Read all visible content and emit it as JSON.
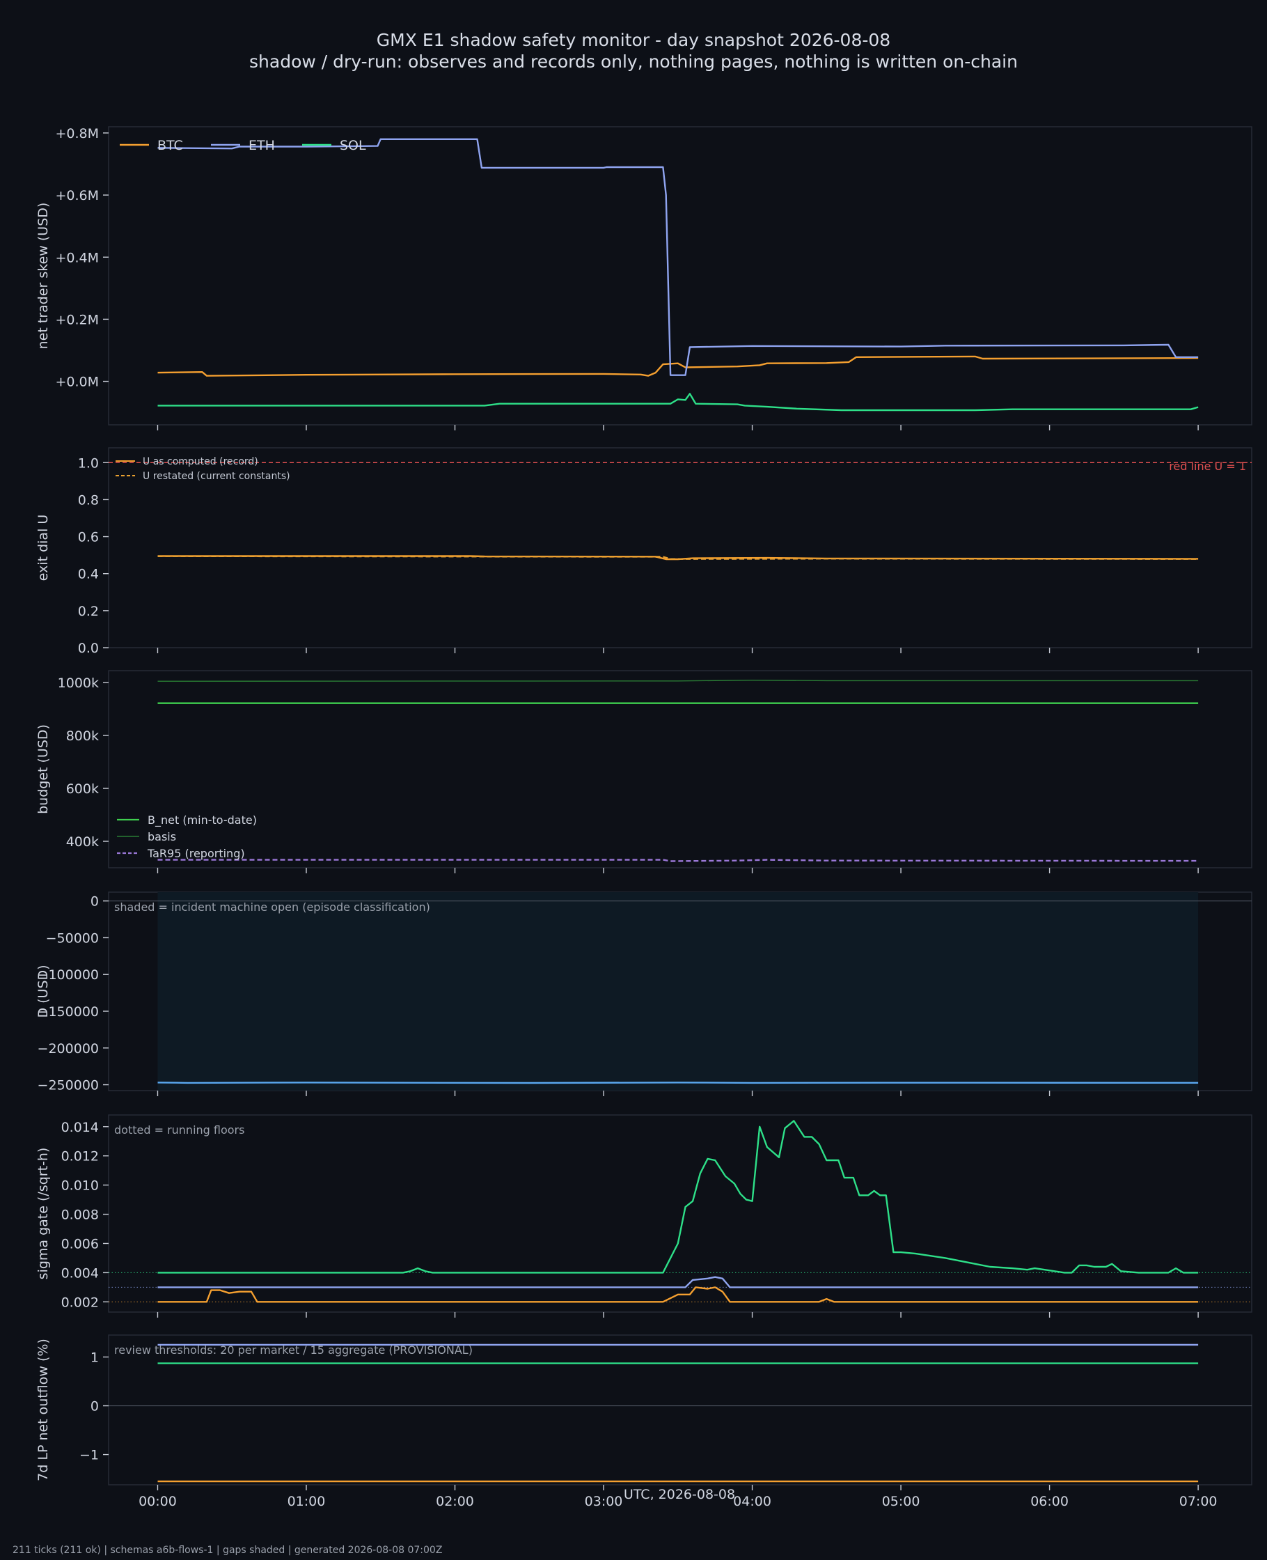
{
  "page": {
    "title": "GMX E1 shadow safety monitor - day snapshot 2026-08-08",
    "subtitle": "shadow / dry-run: observes and records only, nothing pages, nothing is written on-chain",
    "footer": "211 ticks (211 ok) | schemas a6b-flows-1 | gaps shaded | generated 2026-08-08 07:00Z"
  },
  "colors": {
    "background": "#0d1017",
    "panel": "#0d1017",
    "btc": "#f5a030",
    "eth": "#8fa4f0",
    "sol": "#2ee089",
    "red_line": "#e05050",
    "u_restated": "#e8a030",
    "b_net": "#3fcf4f",
    "basis": "#2a7d35",
    "tar95": "#9b78d8",
    "d_line": "#5aa8f0",
    "shade": "#0e1a24"
  },
  "chart_data": [
    {
      "type": "line",
      "ylabel": "net trader skew (USD)",
      "ylim": [
        -0.14,
        0.82
      ],
      "yticks": [
        0.0,
        0.2,
        0.4,
        0.6,
        0.8
      ],
      "ytick_labels": [
        "+0.0M",
        "+0.2M",
        "+0.4M",
        "+0.6M",
        "+0.8M"
      ],
      "units": "USD millions",
      "legend": [
        "BTC",
        "ETH",
        "SOL"
      ],
      "legend_position": "top-left",
      "series": [
        {
          "name": "BTC",
          "color_key": "btc",
          "points": [
            [
              0,
              0.028
            ],
            [
              0.3,
              0.03
            ],
            [
              0.33,
              0.018
            ],
            [
              1.0,
              0.021
            ],
            [
              2.0,
              0.023
            ],
            [
              3.0,
              0.024
            ],
            [
              3.25,
              0.022
            ],
            [
              3.3,
              0.018
            ],
            [
              3.35,
              0.028
            ],
            [
              3.4,
              0.055
            ],
            [
              3.5,
              0.058
            ],
            [
              3.55,
              0.045
            ],
            [
              3.9,
              0.048
            ],
            [
              4.05,
              0.052
            ],
            [
              4.1,
              0.058
            ],
            [
              4.5,
              0.059
            ],
            [
              4.65,
              0.062
            ],
            [
              4.7,
              0.078
            ],
            [
              5.5,
              0.08
            ],
            [
              5.55,
              0.073
            ],
            [
              6.3,
              0.074
            ],
            [
              7.0,
              0.075
            ]
          ]
        },
        {
          "name": "ETH",
          "color_key": "eth",
          "points": [
            [
              0,
              0.752
            ],
            [
              0.5,
              0.75
            ],
            [
              0.55,
              0.756
            ],
            [
              1.0,
              0.756
            ],
            [
              1.48,
              0.758
            ],
            [
              1.5,
              0.78
            ],
            [
              2.15,
              0.78
            ],
            [
              2.18,
              0.688
            ],
            [
              3.0,
              0.688
            ],
            [
              3.02,
              0.69
            ],
            [
              3.4,
              0.69
            ],
            [
              3.42,
              0.6
            ],
            [
              3.45,
              0.02
            ],
            [
              3.55,
              0.02
            ],
            [
              3.58,
              0.11
            ],
            [
              4.0,
              0.114
            ],
            [
              5.0,
              0.112
            ],
            [
              5.3,
              0.115
            ],
            [
              6.5,
              0.116
            ],
            [
              6.8,
              0.118
            ],
            [
              6.85,
              0.078
            ],
            [
              7.0,
              0.078
            ]
          ]
        },
        {
          "name": "SOL",
          "color_key": "sol",
          "points": [
            [
              0,
              -0.078
            ],
            [
              2.2,
              -0.078
            ],
            [
              2.3,
              -0.072
            ],
            [
              3.45,
              -0.072
            ],
            [
              3.5,
              -0.058
            ],
            [
              3.55,
              -0.06
            ],
            [
              3.58,
              -0.04
            ],
            [
              3.62,
              -0.072
            ],
            [
              3.9,
              -0.074
            ],
            [
              3.95,
              -0.078
            ],
            [
              4.1,
              -0.082
            ],
            [
              4.3,
              -0.088
            ],
            [
              4.6,
              -0.093
            ],
            [
              5.5,
              -0.093
            ],
            [
              5.75,
              -0.09
            ],
            [
              6.95,
              -0.09
            ],
            [
              7.0,
              -0.083
            ]
          ]
        }
      ]
    },
    {
      "type": "line",
      "ylabel": "exit dial U",
      "ylim": [
        0.0,
        1.08
      ],
      "yticks": [
        0.0,
        0.2,
        0.4,
        0.6,
        0.8,
        1.0
      ],
      "ytick_labels": [
        "0.0",
        "0.2",
        "0.4",
        "0.6",
        "0.8",
        "1.0"
      ],
      "legend": [
        "U as computed (record)",
        "U restated (current constants)"
      ],
      "legend_position": "top-left",
      "annotation": "red line U = 1",
      "hline": 1.0,
      "series": [
        {
          "name": "U as computed (record)",
          "color_key": "btc",
          "points": [
            [
              0,
              0.495
            ],
            [
              2.1,
              0.495
            ],
            [
              2.2,
              0.493
            ],
            [
              3.35,
              0.492
            ],
            [
              3.42,
              0.478
            ],
            [
              3.5,
              0.478
            ],
            [
              3.6,
              0.483
            ],
            [
              4.1,
              0.485
            ],
            [
              4.5,
              0.482
            ],
            [
              7.0,
              0.48
            ]
          ]
        },
        {
          "name": "U restated (current constants)",
          "color_key": "u_restated",
          "dashed": true,
          "points": [
            [
              0,
              0.494
            ],
            [
              3.4,
              0.491
            ],
            [
              3.45,
              0.479
            ],
            [
              4.5,
              0.481
            ],
            [
              7.0,
              0.479
            ]
          ]
        }
      ]
    },
    {
      "type": "line",
      "ylabel": "budget (USD)",
      "ylim": [
        300000,
        1045000
      ],
      "yticks": [
        400000,
        600000,
        800000,
        1000000
      ],
      "ytick_labels": [
        "400k",
        "600k",
        "800k",
        "1000k"
      ],
      "legend": [
        "B_net (min-to-date)",
        "basis",
        "TaR95 (reporting)"
      ],
      "legend_position": "lower-left",
      "series": [
        {
          "name": "B_net (min-to-date)",
          "color_key": "b_net",
          "points": [
            [
              0,
              922000
            ],
            [
              7.0,
              922000
            ]
          ]
        },
        {
          "name": "basis",
          "color_key": "basis",
          "points": [
            [
              0,
              1005000
            ],
            [
              3.5,
              1006000
            ],
            [
              4.0,
              1009000
            ],
            [
              4.5,
              1007000
            ],
            [
              7.0,
              1007000
            ]
          ]
        },
        {
          "name": "TaR95 (reporting)",
          "color_key": "tar95",
          "dashed": true,
          "points": [
            [
              0,
              330000
            ],
            [
              3.4,
              330000
            ],
            [
              3.45,
              325000
            ],
            [
              3.9,
              327000
            ],
            [
              4.1,
              330000
            ],
            [
              4.5,
              327000
            ],
            [
              7.0,
              326000
            ]
          ]
        }
      ]
    },
    {
      "type": "line",
      "ylabel": "D (USD)",
      "ylim": [
        -258000,
        12000
      ],
      "yticks": [
        -250000,
        -200000,
        -150000,
        -100000,
        -50000,
        0
      ],
      "ytick_labels": [
        "−250000",
        "−200000",
        "−150000",
        "−100000",
        "−50000",
        "0"
      ],
      "annotation": "shaded = incident machine open (episode classification)",
      "shade_range": [
        0,
        7.0
      ],
      "hline": 0,
      "series": [
        {
          "name": "D",
          "color_key": "d_line",
          "points": [
            [
              0,
              -247000
            ],
            [
              0.2,
              -247500
            ],
            [
              1.0,
              -247000
            ],
            [
              2.5,
              -247600
            ],
            [
              3.5,
              -247000
            ],
            [
              4.0,
              -247500
            ],
            [
              5.0,
              -247300
            ],
            [
              7.0,
              -247400
            ]
          ]
        }
      ]
    },
    {
      "type": "line",
      "ylabel": "sigma gate (/sqrt-h)",
      "ylim": [
        0.0013,
        0.0148
      ],
      "yticks": [
        0.002,
        0.004,
        0.006,
        0.008,
        0.01,
        0.012,
        0.014
      ],
      "ytick_labels": [
        "0.002",
        "0.004",
        "0.006",
        "0.008",
        "0.010",
        "0.012",
        "0.014"
      ],
      "annotation": "dotted = running floors",
      "floors": [
        {
          "color_key": "sol",
          "value": 0.004
        },
        {
          "color_key": "eth",
          "value": 0.003
        },
        {
          "color_key": "btc",
          "value": 0.002
        }
      ],
      "series": [
        {
          "name": "SOL",
          "color_key": "sol",
          "points": [
            [
              0,
              0.004
            ],
            [
              1.65,
              0.004
            ],
            [
              1.7,
              0.0041
            ],
            [
              1.75,
              0.0043
            ],
            [
              1.8,
              0.0041
            ],
            [
              1.85,
              0.004
            ],
            [
              3.4,
              0.004
            ],
            [
              3.5,
              0.006
            ],
            [
              3.55,
              0.0085
            ],
            [
              3.6,
              0.0089
            ],
            [
              3.65,
              0.0108
            ],
            [
              3.7,
              0.0118
            ],
            [
              3.75,
              0.0117
            ],
            [
              3.82,
              0.0106
            ],
            [
              3.88,
              0.0101
            ],
            [
              3.92,
              0.0094
            ],
            [
              3.96,
              0.009
            ],
            [
              4.0,
              0.0089
            ],
            [
              4.05,
              0.014
            ],
            [
              4.1,
              0.0126
            ],
            [
              4.18,
              0.0119
            ],
            [
              4.22,
              0.0139
            ],
            [
              4.28,
              0.0144
            ],
            [
              4.35,
              0.0133
            ],
            [
              4.4,
              0.0133
            ],
            [
              4.45,
              0.0128
            ],
            [
              4.5,
              0.0117
            ],
            [
              4.58,
              0.0117
            ],
            [
              4.62,
              0.0105
            ],
            [
              4.68,
              0.0105
            ],
            [
              4.72,
              0.0093
            ],
            [
              4.78,
              0.0093
            ],
            [
              4.82,
              0.0096
            ],
            [
              4.86,
              0.0093
            ],
            [
              4.9,
              0.0093
            ],
            [
              4.95,
              0.0054
            ],
            [
              5.0,
              0.0054
            ],
            [
              5.1,
              0.0053
            ],
            [
              5.3,
              0.005
            ],
            [
              5.5,
              0.0046
            ],
            [
              5.6,
              0.0044
            ],
            [
              5.75,
              0.0043
            ],
            [
              5.85,
              0.0042
            ],
            [
              5.9,
              0.0043
            ],
            [
              6.1,
              0.004
            ],
            [
              6.15,
              0.004
            ],
            [
              6.2,
              0.0045
            ],
            [
              6.25,
              0.0045
            ],
            [
              6.3,
              0.0044
            ],
            [
              6.38,
              0.0044
            ],
            [
              6.42,
              0.0046
            ],
            [
              6.48,
              0.0041
            ],
            [
              6.6,
              0.004
            ],
            [
              6.8,
              0.004
            ],
            [
              6.85,
              0.0043
            ],
            [
              6.9,
              0.004
            ],
            [
              7.0,
              0.004
            ]
          ]
        },
        {
          "name": "ETH",
          "color_key": "eth",
          "points": [
            [
              0,
              0.003
            ],
            [
              3.55,
              0.003
            ],
            [
              3.6,
              0.0035
            ],
            [
              3.7,
              0.0036
            ],
            [
              3.75,
              0.0037
            ],
            [
              3.8,
              0.0036
            ],
            [
              3.85,
              0.003
            ],
            [
              7.0,
              0.003
            ]
          ]
        },
        {
          "name": "BTC",
          "color_key": "btc",
          "points": [
            [
              0,
              0.002
            ],
            [
              0.33,
              0.002
            ],
            [
              0.36,
              0.0028
            ],
            [
              0.42,
              0.0028
            ],
            [
              0.48,
              0.0026
            ],
            [
              0.55,
              0.0027
            ],
            [
              0.63,
              0.0027
            ],
            [
              0.67,
              0.002
            ],
            [
              3.4,
              0.002
            ],
            [
              3.5,
              0.0025
            ],
            [
              3.58,
              0.0025
            ],
            [
              3.62,
              0.003
            ],
            [
              3.7,
              0.0029
            ],
            [
              3.75,
              0.003
            ],
            [
              3.8,
              0.0027
            ],
            [
              3.85,
              0.002
            ],
            [
              4.45,
              0.002
            ],
            [
              4.5,
              0.0022
            ],
            [
              4.55,
              0.002
            ],
            [
              7.0,
              0.002
            ]
          ]
        }
      ]
    },
    {
      "type": "line",
      "ylabel": "7d LP net outflow (%)",
      "ylim": [
        -1.62,
        1.45
      ],
      "yticks": [
        -1,
        0,
        1
      ],
      "ytick_labels": [
        "−1",
        "0",
        "1"
      ],
      "annotation": "review thresholds: 20 per market / 15 aggregate (PROVISIONAL)",
      "hline": 0,
      "series": [
        {
          "name": "ETH",
          "color_key": "eth",
          "points": [
            [
              0,
              1.25
            ],
            [
              7.0,
              1.25
            ]
          ]
        },
        {
          "name": "SOL",
          "color_key": "sol",
          "points": [
            [
              0,
              0.87
            ],
            [
              7.0,
              0.87
            ]
          ]
        },
        {
          "name": "BTC",
          "color_key": "btc",
          "points": [
            [
              0,
              -1.55
            ],
            [
              7.0,
              -1.55
            ]
          ]
        }
      ]
    }
  ],
  "x_axis": {
    "label": "UTC, 2026-08-08",
    "xlim": [
      -0.33,
      7.36
    ],
    "ticks": [
      0,
      1,
      2,
      3,
      4,
      5,
      6,
      7
    ],
    "tick_labels": [
      "00:00",
      "01:00",
      "02:00",
      "03:00",
      "04:00",
      "05:00",
      "06:00",
      "07:00"
    ]
  }
}
